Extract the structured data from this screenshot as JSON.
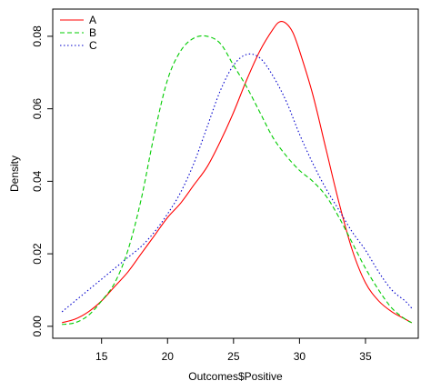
{
  "chart_data": {
    "type": "line",
    "title": "",
    "xlabel": "Outcomes$Positive",
    "ylabel": "Density",
    "xlim": [
      11.3,
      39.0
    ],
    "ylim": [
      -0.0033,
      0.0875
    ],
    "x_ticks": [
      15,
      20,
      25,
      30,
      35
    ],
    "y_ticks": [
      0.0,
      0.02,
      0.04,
      0.06,
      0.08
    ],
    "y_tick_labels": [
      "0.00",
      "0.02",
      "0.04",
      "0.06",
      "0.08"
    ],
    "grid": false,
    "legend": "top-left",
    "series": [
      {
        "name": "A",
        "color": "#ff0000",
        "dash": "solid",
        "x": [
          12,
          13,
          14,
          15,
          16,
          17,
          18,
          19,
          20,
          21,
          22,
          23,
          24,
          25,
          26,
          27,
          28,
          28.5,
          29,
          29.5,
          30,
          31,
          32,
          33,
          34,
          35,
          36,
          37,
          38,
          38.5
        ],
        "values": [
          0.001,
          0.002,
          0.004,
          0.007,
          0.011,
          0.015,
          0.02,
          0.025,
          0.03,
          0.034,
          0.039,
          0.044,
          0.051,
          0.059,
          0.068,
          0.076,
          0.082,
          0.084,
          0.0835,
          0.081,
          0.076,
          0.064,
          0.049,
          0.034,
          0.021,
          0.012,
          0.007,
          0.004,
          0.002,
          0.001
        ]
      },
      {
        "name": "B",
        "color": "#00cc00",
        "dash": "dashed",
        "x": [
          12,
          13,
          14,
          15,
          16,
          17,
          18,
          19,
          20,
          21,
          22,
          23,
          24,
          25,
          26,
          27,
          28,
          29,
          30,
          31,
          32,
          33,
          34,
          35,
          36,
          37,
          38,
          38.5
        ],
        "values": [
          0.0005,
          0.001,
          0.003,
          0.007,
          0.012,
          0.021,
          0.035,
          0.053,
          0.068,
          0.076,
          0.0795,
          0.08,
          0.078,
          0.072,
          0.066,
          0.059,
          0.052,
          0.047,
          0.043,
          0.04,
          0.036,
          0.03,
          0.023,
          0.016,
          0.01,
          0.005,
          0.002,
          0.001
        ]
      },
      {
        "name": "C",
        "color": "#0000cc",
        "dash": "dotted",
        "x": [
          12,
          13,
          14,
          15,
          16,
          17,
          18,
          19,
          20,
          21,
          22,
          23,
          24,
          25,
          26,
          27,
          28,
          29,
          30,
          31,
          32,
          33,
          34,
          35,
          36,
          37,
          38,
          38.5
        ],
        "values": [
          0.004,
          0.007,
          0.01,
          0.013,
          0.016,
          0.019,
          0.022,
          0.026,
          0.031,
          0.037,
          0.045,
          0.055,
          0.065,
          0.072,
          0.075,
          0.074,
          0.069,
          0.062,
          0.053,
          0.045,
          0.038,
          0.032,
          0.026,
          0.021,
          0.015,
          0.01,
          0.007,
          0.005
        ]
      }
    ]
  }
}
